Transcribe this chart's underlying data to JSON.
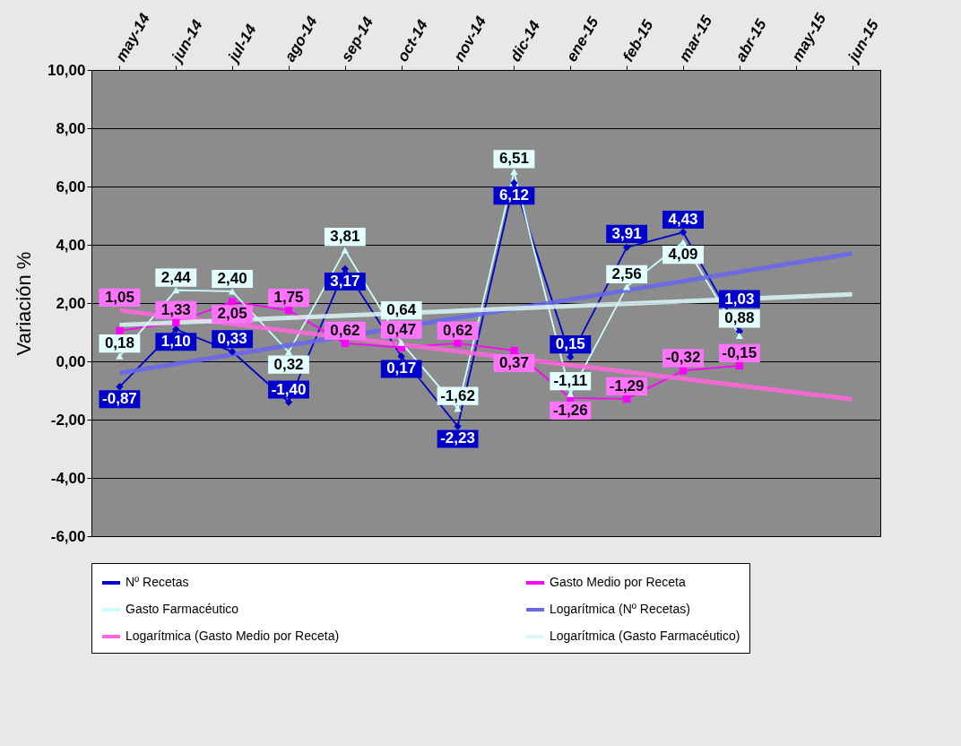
{
  "chart_data": {
    "type": "line",
    "ylabel": "Variación %",
    "categories": [
      "may-14",
      "jun-14",
      "jul-14",
      "ago-14",
      "sep-14",
      "oct-14",
      "nov-14",
      "dic-14",
      "ene-15",
      "feb-15",
      "mar-15",
      "abr-15",
      "may-15",
      "jun-15"
    ],
    "ylim": [
      -6,
      10
    ],
    "yticks": [
      {
        "value": -6,
        "label": "-6,00"
      },
      {
        "value": -4,
        "label": "-4,00"
      },
      {
        "value": -2,
        "label": "-2,00"
      },
      {
        "value": 0,
        "label": "0,00"
      },
      {
        "value": 2,
        "label": "2,00"
      },
      {
        "value": 4,
        "label": "4,00"
      },
      {
        "value": 6,
        "label": "6,00"
      },
      {
        "value": 8,
        "label": "8,00"
      },
      {
        "value": 10,
        "label": "10,00"
      }
    ],
    "grid": "y",
    "legend": "bottom",
    "line_style": "solid",
    "series": [
      {
        "name": "Nº Recetas",
        "color": "#0000cc",
        "marker": "diamond",
        "values": [
          -0.87,
          1.1,
          0.33,
          -1.4,
          3.17,
          0.17,
          -2.23,
          6.12,
          0.15,
          3.91,
          4.43,
          1.03,
          null,
          null
        ],
        "value_labels": [
          "-0,87",
          "1,10",
          "0,33",
          "-1,40",
          "3,17",
          "0,17",
          "-2,23",
          "6,12",
          "0,15",
          "3,91",
          "4,43",
          "1,03",
          null,
          null
        ]
      },
      {
        "name": "Gasto Medio por Receta",
        "color": "#ff00ff",
        "marker": "square",
        "values": [
          1.05,
          1.33,
          2.05,
          1.75,
          0.62,
          0.47,
          0.62,
          0.37,
          -1.26,
          -1.29,
          -0.32,
          -0.15,
          null,
          null
        ],
        "value_labels": [
          "1,05",
          "1,33",
          "2,05",
          "1,75",
          "0,62",
          "0,47",
          "0,62",
          "0,37",
          "-1,26",
          "-1,29",
          "-0,32",
          "-0,15",
          null,
          null
        ]
      },
      {
        "name": "Gasto Farmacéutico",
        "color": "#ccffff",
        "marker": "triangle",
        "values": [
          0.18,
          2.44,
          2.4,
          0.32,
          3.81,
          0.64,
          -1.62,
          6.51,
          -1.11,
          2.56,
          4.09,
          0.88,
          null,
          null
        ],
        "value_labels": [
          "0,18",
          "2,44",
          "2,40",
          "0,32",
          "3,81",
          "0,64",
          "-1,62",
          "6,51",
          "-1,11",
          "2,56",
          "4,09",
          "0,88",
          null,
          null
        ]
      },
      {
        "name": "Logarítmica (Nº Recetas)",
        "type": "line",
        "color": "#6666ee",
        "marker": "none",
        "x": [
          "may-14",
          "jun-15"
        ],
        "values": [
          -0.4,
          3.7
        ]
      },
      {
        "name": "Logarítmica (Gasto Medio por Receta)",
        "type": "line",
        "color": "#ff66dd",
        "marker": "none",
        "x": [
          "may-14",
          "jun-15"
        ],
        "values": [
          1.75,
          -1.3
        ]
      },
      {
        "name": "Logarítmica (Gasto Farmacéutico)",
        "type": "line",
        "color": "#ddf6f6",
        "marker": "none",
        "x": [
          "may-14",
          "jun-15"
        ],
        "values": [
          1.25,
          2.3
        ]
      }
    ]
  }
}
